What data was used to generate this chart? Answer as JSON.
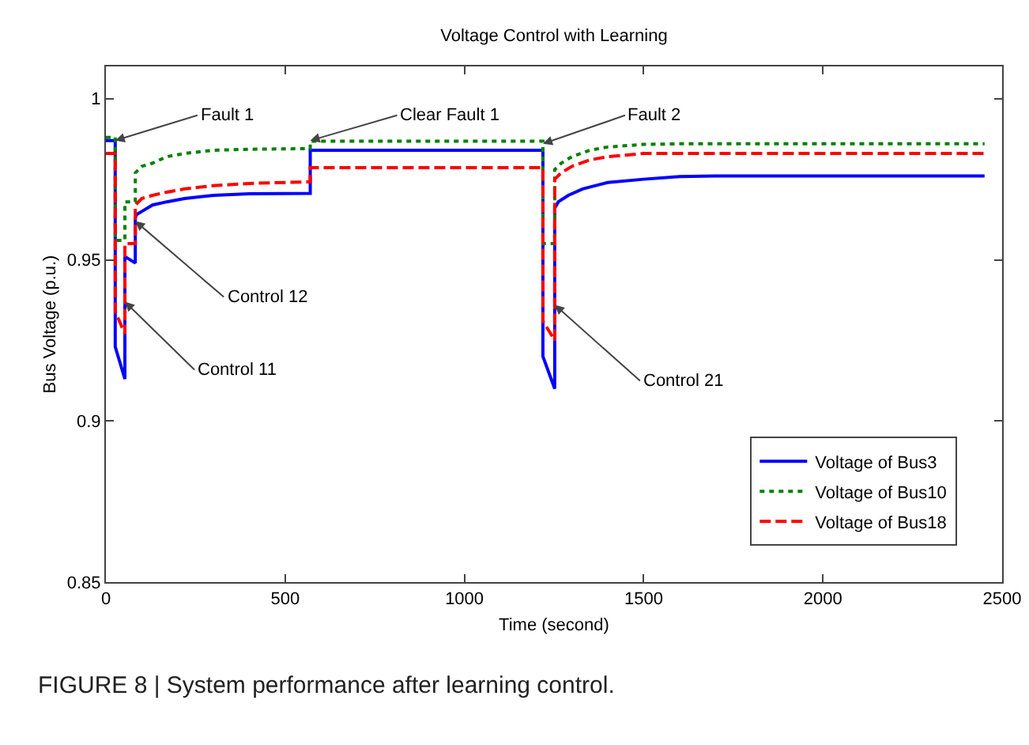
{
  "chart_data": {
    "type": "line",
    "title": "Voltage Control with Learning",
    "xlabel": "Time (second)",
    "ylabel": "Bus Voltage (p.u.)",
    "xlim": [
      0,
      2500
    ],
    "xticks": [
      0,
      500,
      1000,
      1500,
      2000,
      2500
    ],
    "ylim": [
      0.85,
      1.01
    ],
    "yticks": [
      0.85,
      0.9,
      0.95,
      1
    ],
    "grid": false,
    "legend": "bottom right",
    "marker": "none",
    "series": [
      {
        "name": "Voltage of Bus3",
        "color": "#0000ff",
        "line_style": "solid",
        "x": [
          0,
          26,
          26,
          53,
          53,
          82,
          82,
          85,
          100,
          130,
          170,
          220,
          300,
          400,
          570,
          570,
          1219,
          1219,
          1252,
          1252,
          1262,
          1290,
          1330,
          1400,
          1500,
          1600,
          1700,
          2000,
          2451
        ],
        "values": [
          0.987,
          0.987,
          0.923,
          0.913,
          0.951,
          0.949,
          0.963,
          0.964,
          0.965,
          0.967,
          0.968,
          0.969,
          0.97,
          0.9705,
          0.9706,
          0.984,
          0.984,
          0.92,
          0.91,
          0.966,
          0.968,
          0.97,
          0.972,
          0.974,
          0.975,
          0.9758,
          0.976,
          0.976,
          0.976
        ]
      },
      {
        "name": "Voltage of Bus10",
        "color": "#008000",
        "line_style": "dotted",
        "x": [
          0,
          26,
          26,
          53,
          53,
          82,
          82,
          100,
          130,
          170,
          220,
          300,
          400,
          570,
          570,
          1219,
          1219,
          1252,
          1252,
          1270,
          1300,
          1350,
          1400,
          1500,
          1600,
          2000,
          2451
        ],
        "values": [
          0.988,
          0.988,
          0.956,
          0.956,
          0.968,
          0.968,
          0.977,
          0.979,
          0.98,
          0.982,
          0.983,
          0.984,
          0.9843,
          0.9845,
          0.9868,
          0.9868,
          0.955,
          0.955,
          0.978,
          0.98,
          0.982,
          0.984,
          0.985,
          0.9858,
          0.986,
          0.986,
          0.986
        ]
      },
      {
        "name": "Voltage of Bus18",
        "color": "#ff0000",
        "line_style": "dashed",
        "x": [
          0,
          26,
          26,
          53,
          53,
          82,
          82,
          100,
          130,
          170,
          220,
          300,
          400,
          570,
          570,
          1219,
          1219,
          1252,
          1252,
          1270,
          1300,
          1350,
          1400,
          1500,
          1600,
          2000,
          2451
        ],
        "values": [
          0.983,
          0.983,
          0.934,
          0.927,
          0.955,
          0.955,
          0.967,
          0.969,
          0.97,
          0.971,
          0.972,
          0.973,
          0.9737,
          0.9742,
          0.9786,
          0.9786,
          0.931,
          0.925,
          0.975,
          0.977,
          0.979,
          0.981,
          0.982,
          0.983,
          0.983,
          0.983,
          0.983
        ]
      }
    ],
    "annotations": [
      {
        "text": "Fault 1",
        "x": 26,
        "y": 0.987
      },
      {
        "text": "Clear Fault 1",
        "x": 570,
        "y": 0.987
      },
      {
        "text": "Fault 2",
        "x": 1219,
        "y": 0.986
      },
      {
        "text": "Control 12",
        "x": 82,
        "y": 0.962
      },
      {
        "text": "Control 11",
        "x": 53,
        "y": 0.937
      },
      {
        "text": "Control 21",
        "x": 1252,
        "y": 0.936
      },
      "FIGURE 8 | System performance after learning control."
    ]
  }
}
